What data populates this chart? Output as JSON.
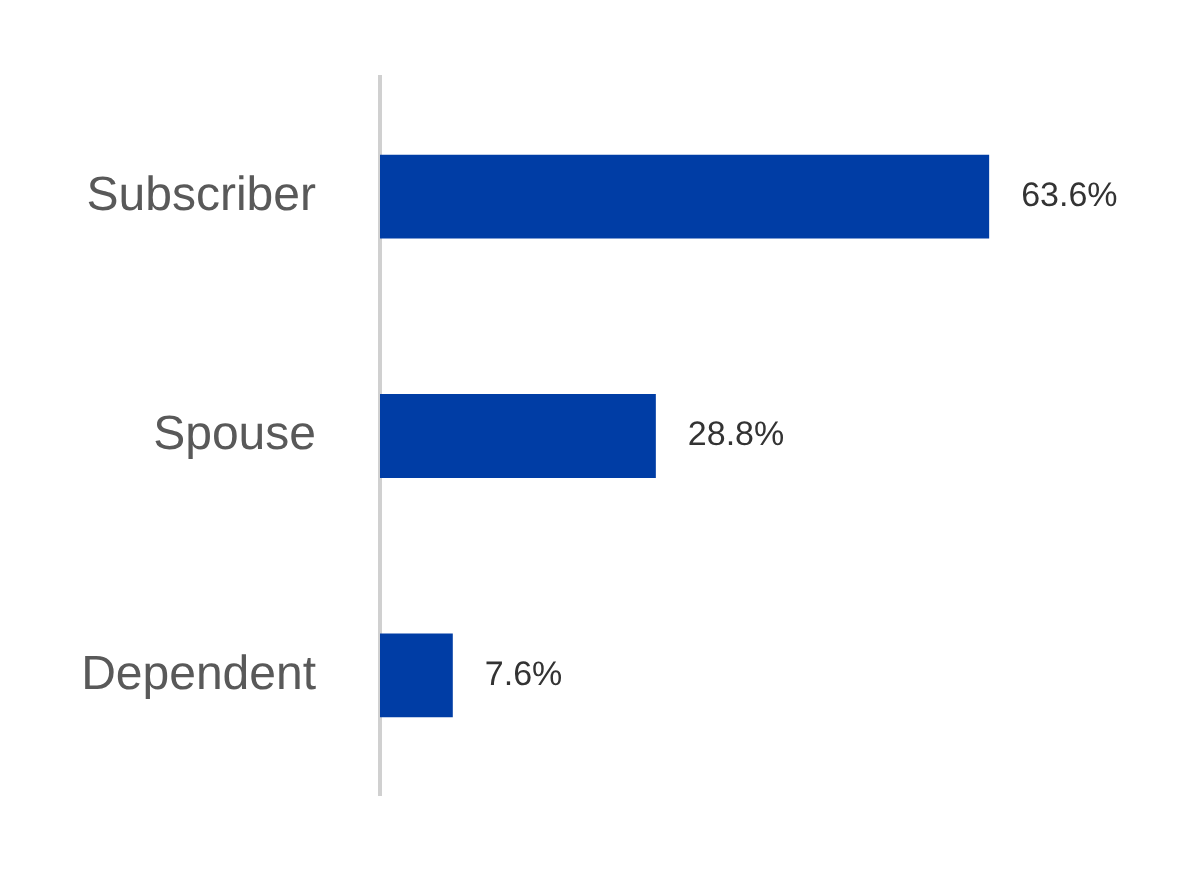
{
  "chart_data": {
    "type": "bar",
    "orientation": "horizontal",
    "categories": [
      "Subscriber",
      "Spouse",
      "Dependent"
    ],
    "values": [
      63.6,
      28.8,
      7.6
    ],
    "color": "#003da5",
    "value_labels": [
      "63.6%",
      "28.8%",
      "7.6%"
    ],
    "legend": false
  }
}
